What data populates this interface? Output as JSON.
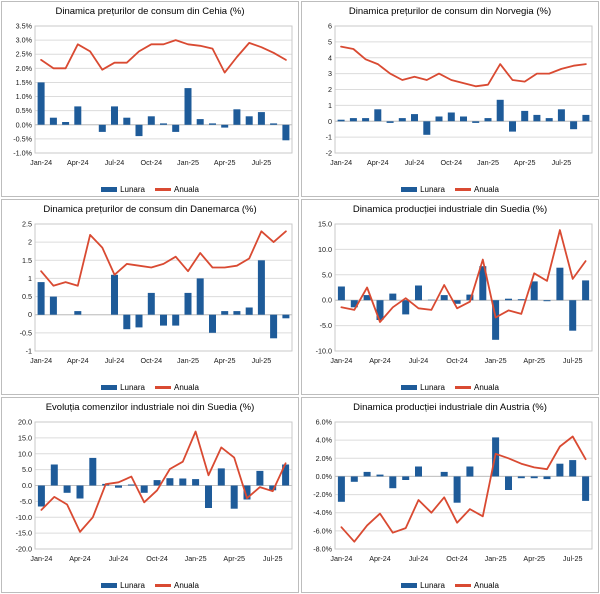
{
  "style": {
    "bar": "#1e5b99",
    "line": "#d94a32",
    "grid": "#dcdcdc",
    "zero_axis": "#c2c2c2",
    "plot_border": "#c9c9c9",
    "tick": "#1a1a1a",
    "panel_border": "#bdbdbd"
  },
  "legend": {
    "lunara": "Lunara",
    "anuala": "Anuala"
  },
  "chart_data": [
    {
      "type": "bar",
      "title": "Dinamica prețurilor de consum din Cehia (%)",
      "categories": [
        "Jan-24",
        "Feb-24",
        "Mar-24",
        "Apr-24",
        "May-24",
        "Jun-24",
        "Jul-24",
        "Aug-24",
        "Sep-24",
        "Oct-24",
        "Nov-24",
        "Dec-24",
        "Jan-25",
        "Feb-25",
        "Mar-25",
        "Apr-25",
        "May-25",
        "Jun-25",
        "Jul-25",
        "Aug-25",
        "Sep-25"
      ],
      "x_tick_labels": [
        "Jan-24",
        "Apr-24",
        "Jul-24",
        "Oct-24",
        "Jan-25",
        "Apr-25",
        "Jul-25"
      ],
      "y_tick_labels": [
        "3.5%",
        "3.0%",
        "2.5%",
        "2.0%",
        "1.5%",
        "1.0%",
        "0.5%",
        "0.0%",
        "-0.5%",
        "-1.0%"
      ],
      "ylim": [
        -1.0,
        3.5
      ],
      "grid": true,
      "legend_position": "bottom",
      "series": [
        {
          "name": "Lunara",
          "type": "bar",
          "values": [
            1.5,
            0.25,
            0.1,
            0.65,
            0.0,
            -0.25,
            0.65,
            0.25,
            -0.4,
            0.3,
            0.05,
            -0.25,
            1.3,
            0.2,
            0.05,
            -0.1,
            0.55,
            0.3,
            0.45,
            0.05,
            -0.55
          ]
        },
        {
          "name": "Anuala",
          "type": "line",
          "values": [
            2.3,
            2.0,
            2.0,
            2.85,
            2.6,
            1.95,
            2.2,
            2.2,
            2.6,
            2.85,
            2.85,
            3.0,
            2.85,
            2.8,
            2.7,
            1.85,
            2.4,
            2.9,
            2.75,
            2.55,
            2.3
          ]
        }
      ]
    },
    {
      "type": "bar",
      "title": "Dinamica prețurilor de consum din Norvegia (%)",
      "categories": [
        "Jan-24",
        "Feb-24",
        "Mar-24",
        "Apr-24",
        "May-24",
        "Jun-24",
        "Jul-24",
        "Aug-24",
        "Sep-24",
        "Oct-24",
        "Nov-24",
        "Dec-24",
        "Jan-25",
        "Feb-25",
        "Mar-25",
        "Apr-25",
        "May-25",
        "Jun-25",
        "Jul-25",
        "Aug-25",
        "Sep-25"
      ],
      "x_tick_labels": [
        "Jan-24",
        "Apr-24",
        "Jul-24",
        "Oct-24",
        "Jan-25",
        "Apr-25",
        "Jul-25"
      ],
      "y_tick_labels": [
        "6",
        "5",
        "4",
        "3",
        "2",
        "1",
        "0",
        "-1",
        "-2"
      ],
      "ylim": [
        -2,
        6
      ],
      "grid": true,
      "legend_position": "bottom",
      "series": [
        {
          "name": "Lunara",
          "type": "bar",
          "values": [
            0.1,
            0.2,
            0.2,
            0.75,
            -0.1,
            0.2,
            0.45,
            -0.85,
            0.3,
            0.55,
            0.3,
            -0.1,
            0.2,
            1.35,
            -0.65,
            0.65,
            0.4,
            0.2,
            0.75,
            -0.5,
            0.4
          ]
        },
        {
          "name": "Anuala",
          "type": "line",
          "values": [
            4.7,
            4.55,
            3.9,
            3.6,
            3.0,
            2.6,
            2.8,
            2.6,
            3.0,
            2.6,
            2.4,
            2.2,
            2.3,
            3.6,
            2.6,
            2.5,
            3.0,
            3.0,
            3.3,
            3.5,
            3.6
          ]
        }
      ]
    },
    {
      "type": "bar",
      "title": "Dinamica prețurilor de consum din Danemarca (%)",
      "categories": [
        "Jan-24",
        "Feb-24",
        "Mar-24",
        "Apr-24",
        "May-24",
        "Jun-24",
        "Jul-24",
        "Aug-24",
        "Sep-24",
        "Oct-24",
        "Nov-24",
        "Dec-24",
        "Jan-25",
        "Feb-25",
        "Mar-25",
        "Apr-25",
        "May-25",
        "Jun-25",
        "Jul-25",
        "Aug-25",
        "Sep-25"
      ],
      "x_tick_labels": [
        "Jan-24",
        "Apr-24",
        "Jul-24",
        "Oct-24",
        "Jan-25",
        "Apr-25",
        "Jul-25"
      ],
      "y_tick_labels": [
        "2.5",
        "2",
        "1.5",
        "1",
        "0.5",
        "0",
        "-0.5",
        "-1"
      ],
      "ylim": [
        -1,
        2.5
      ],
      "grid": true,
      "legend_position": "bottom",
      "series": [
        {
          "name": "Lunara",
          "type": "bar",
          "values": [
            0.9,
            0.5,
            0.0,
            0.1,
            0.0,
            0.0,
            1.1,
            -0.4,
            -0.35,
            0.6,
            -0.3,
            -0.3,
            0.6,
            1.0,
            -0.5,
            0.1,
            0.1,
            0.2,
            1.5,
            -0.65,
            -0.1
          ]
        },
        {
          "name": "Anuala",
          "type": "line",
          "values": [
            1.2,
            0.8,
            0.9,
            0.8,
            2.2,
            1.85,
            1.1,
            1.4,
            1.35,
            1.3,
            1.4,
            1.6,
            1.2,
            1.7,
            1.3,
            1.3,
            1.35,
            1.55,
            2.3,
            2.0,
            2.3
          ]
        }
      ]
    },
    {
      "type": "bar",
      "title": "Dinamica producției industriale din Suedia (%)",
      "categories": [
        "Jan-24",
        "Feb-24",
        "Mar-24",
        "Apr-24",
        "May-24",
        "Jun-24",
        "Jul-24",
        "Aug-24",
        "Sep-24",
        "Oct-24",
        "Nov-24",
        "Dec-24",
        "Jan-25",
        "Feb-25",
        "Mar-25",
        "Apr-25",
        "May-25",
        "Jun-25",
        "Jul-25",
        "Aug-25"
      ],
      "x_tick_labels": [
        "Jan-24",
        "Apr-24",
        "Jul-24",
        "Oct-24",
        "Jan-25",
        "Apr-25",
        "Jul-25"
      ],
      "y_tick_labels": [
        "15.0",
        "10.0",
        "5.0",
        "0.0",
        "-5.0",
        "-10.0"
      ],
      "ylim": [
        -10,
        15
      ],
      "grid": true,
      "legend_position": "bottom",
      "series": [
        {
          "name": "Lunara",
          "type": "bar",
          "values": [
            2.7,
            -1.4,
            1.0,
            -3.9,
            1.3,
            -2.8,
            2.9,
            0.1,
            1.0,
            -0.7,
            1.1,
            6.7,
            -7.8,
            0.3,
            0.2,
            3.7,
            -0.2,
            6.4,
            -6.0,
            3.9
          ]
        },
        {
          "name": "Anuala",
          "type": "line",
          "values": [
            -1.4,
            -1.9,
            2.5,
            -4.3,
            -1.4,
            0.4,
            -1.6,
            -1.9,
            3.0,
            -1.6,
            -0.3,
            8.0,
            -3.4,
            -2.0,
            -2.7,
            5.3,
            3.8,
            13.8,
            4.2,
            7.7
          ]
        }
      ]
    },
    {
      "type": "bar",
      "title": "Evoluția comenzilor industriale noi din Suedia (%)",
      "categories": [
        "Jan-24",
        "Feb-24",
        "Mar-24",
        "Apr-24",
        "May-24",
        "Jun-24",
        "Jul-24",
        "Aug-24",
        "Sep-24",
        "Oct-24",
        "Nov-24",
        "Dec-24",
        "Jan-25",
        "Feb-25",
        "Mar-25",
        "Apr-25",
        "May-25",
        "Jun-25",
        "Jul-25",
        "Aug-25"
      ],
      "x_tick_labels": [
        "Jan-24",
        "Apr-24",
        "Jul-24",
        "Oct-24",
        "Jan-25",
        "Apr-25",
        "Jul-25"
      ],
      "y_tick_labels": [
        "20.0",
        "15.0",
        "10.0",
        "5.0",
        "0.0",
        "-5.0",
        "-10.0",
        "-15.0",
        "-20.0"
      ],
      "ylim": [
        -20,
        20
      ],
      "grid": true,
      "legend_position": "bottom",
      "series": [
        {
          "name": "Lunara",
          "type": "bar",
          "values": [
            -6.6,
            6.6,
            -2.3,
            -4.1,
            8.7,
            0.5,
            -0.7,
            0.3,
            -2.3,
            1.7,
            2.3,
            2.2,
            2.0,
            -7.1,
            5.4,
            -7.3,
            -4.4,
            4.6,
            -1.5,
            6.6
          ]
        },
        {
          "name": "Anuala",
          "type": "line",
          "values": [
            -7.7,
            -3.6,
            -6.0,
            -14.6,
            -10.0,
            0.4,
            1.0,
            2.8,
            -5.3,
            -1.5,
            5.2,
            7.5,
            17.0,
            3.2,
            12.0,
            8.8,
            -4.0,
            -0.5,
            -1.8,
            7.0
          ]
        }
      ]
    },
    {
      "type": "bar",
      "title": "Dinamica producției industriale din Austria (%)",
      "categories": [
        "Jan-24",
        "Feb-24",
        "Mar-24",
        "Apr-24",
        "May-24",
        "Jun-24",
        "Jul-24",
        "Aug-24",
        "Sep-24",
        "Oct-24",
        "Nov-24",
        "Dec-24",
        "Jan-25",
        "Feb-25",
        "Mar-25",
        "Apr-25",
        "May-25",
        "Jun-25",
        "Jul-25",
        "Aug-25"
      ],
      "x_tick_labels": [
        "Jan-24",
        "Apr-24",
        "Jul-24",
        "Oct-24",
        "Jan-25",
        "Apr-25",
        "Jul-25"
      ],
      "y_tick_labels": [
        "6.0%",
        "4.0%",
        "2.0%",
        "0.0%",
        "-2.0%",
        "-4.0%",
        "-6.0%",
        "-8.0%"
      ],
      "ylim": [
        -8,
        6
      ],
      "grid": true,
      "legend_position": "bottom",
      "series": [
        {
          "name": "Lunara",
          "type": "bar",
          "values": [
            -2.8,
            -0.6,
            0.5,
            0.2,
            -1.3,
            -0.4,
            1.1,
            0.0,
            0.5,
            -2.9,
            1.1,
            0.0,
            4.3,
            -1.5,
            -0.2,
            -0.2,
            -0.3,
            1.4,
            1.8,
            -2.7
          ]
        },
        {
          "name": "Anuala",
          "type": "line",
          "values": [
            -5.6,
            -7.2,
            -5.4,
            -4.1,
            -6.2,
            -5.7,
            -2.6,
            -4.0,
            -2.3,
            -5.1,
            -3.6,
            -4.4,
            2.5,
            2.0,
            1.4,
            1.0,
            0.8,
            3.3,
            4.4,
            1.9
          ]
        }
      ]
    }
  ]
}
